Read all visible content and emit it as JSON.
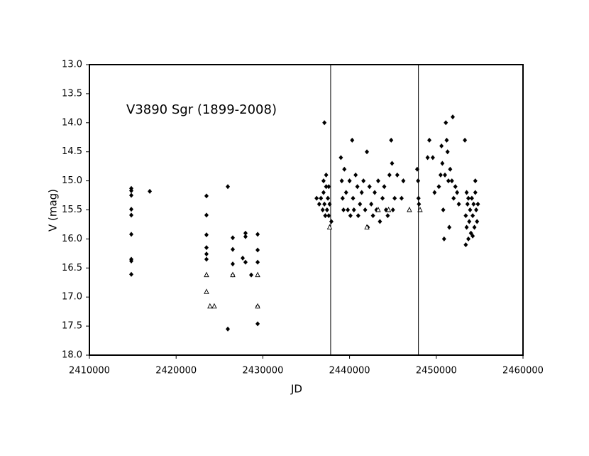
{
  "chart_data": {
    "type": "scatter",
    "annotation": "V3890 Sgr (1899-2008)",
    "xlabel": "JD",
    "ylabel": "V (mag)",
    "xlim": [
      2410000,
      2460000
    ],
    "ylim": [
      13.0,
      18.0
    ],
    "y_inverted": true,
    "xticks": [
      2410000,
      2420000,
      2430000,
      2440000,
      2450000,
      2460000
    ],
    "yticks": [
      {
        "value": 13.0,
        "label": "13.0"
      },
      {
        "value": 13.5,
        "label": "13.5"
      },
      {
        "value": 14.0,
        "label": "14.0"
      },
      {
        "value": 14.5,
        "label": "14.5"
      },
      {
        "value": 15.0,
        "label": "15.0"
      },
      {
        "value": 15.5,
        "label": "15.5"
      },
      {
        "value": 16.0,
        "label": "16.0"
      },
      {
        "value": 16.5,
        "label": "16.5"
      },
      {
        "value": 17.0,
        "label": "17.0"
      },
      {
        "value": 17.5,
        "label": "17.5"
      },
      {
        "value": 18.0,
        "label": "18.0"
      }
    ],
    "vlines": [
      2437817,
      2447941
    ],
    "series": [
      {
        "marker": "diamond",
        "color": "#000000",
        "points": [
          [
            2414830,
            15.13
          ],
          [
            2414830,
            15.17
          ],
          [
            2414830,
            15.25
          ],
          [
            2414830,
            15.49
          ],
          [
            2414830,
            15.59
          ],
          [
            2414830,
            15.92
          ],
          [
            2414830,
            16.35
          ],
          [
            2414830,
            16.38
          ],
          [
            2414830,
            16.61
          ],
          [
            2416960,
            15.18
          ],
          [
            2423500,
            15.26
          ],
          [
            2423500,
            15.59
          ],
          [
            2423500,
            15.93
          ],
          [
            2423500,
            16.15
          ],
          [
            2423500,
            16.26
          ],
          [
            2423500,
            16.35
          ],
          [
            2425960,
            15.1
          ],
          [
            2425960,
            17.55
          ],
          [
            2426530,
            15.98
          ],
          [
            2426530,
            16.18
          ],
          [
            2426530,
            16.43
          ],
          [
            2426530,
            16.62
          ],
          [
            2427680,
            16.33
          ],
          [
            2428000,
            15.9
          ],
          [
            2428000,
            15.96
          ],
          [
            2428000,
            16.4
          ],
          [
            2428660,
            16.62
          ],
          [
            2429400,
            15.92
          ],
          [
            2429400,
            16.19
          ],
          [
            2429400,
            16.4
          ],
          [
            2429400,
            17.16
          ],
          [
            2429400,
            17.46
          ],
          [
            2436200,
            15.3
          ],
          [
            2436500,
            15.4
          ],
          [
            2436700,
            15.3
          ],
          [
            2436900,
            15.5
          ],
          [
            2437000,
            15.2
          ],
          [
            2437100,
            15.4
          ],
          [
            2437200,
            15.6
          ],
          [
            2437300,
            15.1
          ],
          [
            2437400,
            15.5
          ],
          [
            2437500,
            15.3
          ],
          [
            2437600,
            15.6
          ],
          [
            2437700,
            15.4
          ],
          [
            2437900,
            15.7
          ],
          [
            2437000,
            15.0
          ],
          [
            2437300,
            14.9
          ],
          [
            2437100,
            14.0
          ],
          [
            2437600,
            15.1
          ],
          [
            2439000,
            14.6
          ],
          [
            2439100,
            15.0
          ],
          [
            2439200,
            15.3
          ],
          [
            2439300,
            15.5
          ],
          [
            2439400,
            14.8
          ],
          [
            2439600,
            15.2
          ],
          [
            2439800,
            15.5
          ],
          [
            2440000,
            15.0
          ],
          [
            2440100,
            15.6
          ],
          [
            2440300,
            14.3
          ],
          [
            2440400,
            15.3
          ],
          [
            2440500,
            15.5
          ],
          [
            2440700,
            14.9
          ],
          [
            2440900,
            15.1
          ],
          [
            2441000,
            15.6
          ],
          [
            2441200,
            15.4
          ],
          [
            2441400,
            15.2
          ],
          [
            2441600,
            15.0
          ],
          [
            2441800,
            15.5
          ],
          [
            2442000,
            14.5
          ],
          [
            2442100,
            15.8
          ],
          [
            2442300,
            15.1
          ],
          [
            2442500,
            15.4
          ],
          [
            2442700,
            15.6
          ],
          [
            2442900,
            15.2
          ],
          [
            2443100,
            15.5
          ],
          [
            2443300,
            15.0
          ],
          [
            2443500,
            15.7
          ],
          [
            2443800,
            15.3
          ],
          [
            2444000,
            15.1
          ],
          [
            2444200,
            15.5
          ],
          [
            2444400,
            15.6
          ],
          [
            2444600,
            14.9
          ],
          [
            2444800,
            14.3
          ],
          [
            2444900,
            14.7
          ],
          [
            2445000,
            15.5
          ],
          [
            2445200,
            15.3
          ],
          [
            2445500,
            14.9
          ],
          [
            2446000,
            15.3
          ],
          [
            2446200,
            15.0
          ],
          [
            2447800,
            14.8
          ],
          [
            2447900,
            15.0
          ],
          [
            2447950,
            15.3
          ],
          [
            2448000,
            15.4
          ],
          [
            2449000,
            14.6
          ],
          [
            2449200,
            14.3
          ],
          [
            2449600,
            14.6
          ],
          [
            2449800,
            15.2
          ],
          [
            2450300,
            15.1
          ],
          [
            2450500,
            14.9
          ],
          [
            2450600,
            14.4
          ],
          [
            2450700,
            14.7
          ],
          [
            2450800,
            15.5
          ],
          [
            2450900,
            16.0
          ],
          [
            2451000,
            14.9
          ],
          [
            2451100,
            14.0
          ],
          [
            2451200,
            14.3
          ],
          [
            2451300,
            14.5
          ],
          [
            2451400,
            15.0
          ],
          [
            2451500,
            15.8
          ],
          [
            2451600,
            14.8
          ],
          [
            2451800,
            15.0
          ],
          [
            2451900,
            13.9
          ],
          [
            2452000,
            15.3
          ],
          [
            2452200,
            15.1
          ],
          [
            2452400,
            15.2
          ],
          [
            2452600,
            15.4
          ],
          [
            2453300,
            14.3
          ],
          [
            2453400,
            15.6
          ],
          [
            2453500,
            15.2
          ],
          [
            2453500,
            15.8
          ],
          [
            2453600,
            15.4
          ],
          [
            2453700,
            16.0
          ],
          [
            2453700,
            15.3
          ],
          [
            2453800,
            15.7
          ],
          [
            2453900,
            15.5
          ],
          [
            2454000,
            15.9
          ],
          [
            2454100,
            15.3
          ],
          [
            2454200,
            15.6
          ],
          [
            2454300,
            15.4
          ],
          [
            2454400,
            15.8
          ],
          [
            2454500,
            15.2
          ],
          [
            2454500,
            15.0
          ],
          [
            2454600,
            15.5
          ],
          [
            2454700,
            15.7
          ],
          [
            2454800,
            15.4
          ],
          [
            2453400,
            16.1
          ],
          [
            2454200,
            15.95
          ]
        ]
      },
      {
        "marker": "triangle",
        "color": "#000000",
        "points": [
          [
            2423500,
            16.62
          ],
          [
            2423500,
            16.91
          ],
          [
            2423900,
            17.16
          ],
          [
            2424400,
            17.16
          ],
          [
            2426530,
            16.62
          ],
          [
            2429400,
            16.62
          ],
          [
            2429400,
            17.16
          ],
          [
            2437700,
            15.8
          ],
          [
            2442000,
            15.8
          ],
          [
            2443300,
            15.5
          ],
          [
            2444500,
            15.5
          ],
          [
            2446900,
            15.5
          ],
          [
            2448130,
            15.5
          ]
        ]
      }
    ]
  }
}
